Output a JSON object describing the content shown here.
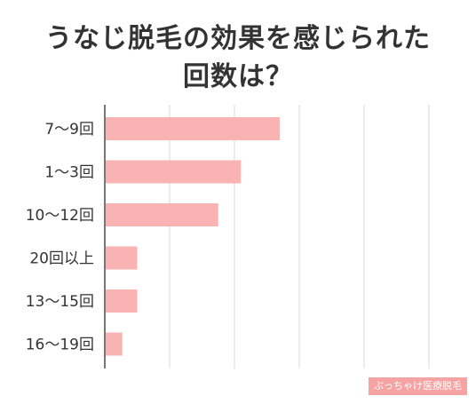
{
  "title_line1": "うなじ脱毛の効果を感じられた",
  "title_line2": "回数は？",
  "watermark": "ぶっちゃけ医療脱毛",
  "chart_data": {
    "type": "bar",
    "orientation": "horizontal",
    "title": "うなじ脱毛の効果を感じられた回数は？",
    "categories": [
      "7〜9回",
      "1〜3回",
      "10〜12回",
      "20回以上",
      "13〜15回",
      "16〜19回"
    ],
    "values": [
      27,
      21,
      17.5,
      5,
      5,
      2.7
    ],
    "xlim": [
      0,
      50
    ],
    "grid": true,
    "bar_color": "#f9b3b3",
    "grid_color": "#d9d9d9",
    "axis_color": "#777777"
  }
}
